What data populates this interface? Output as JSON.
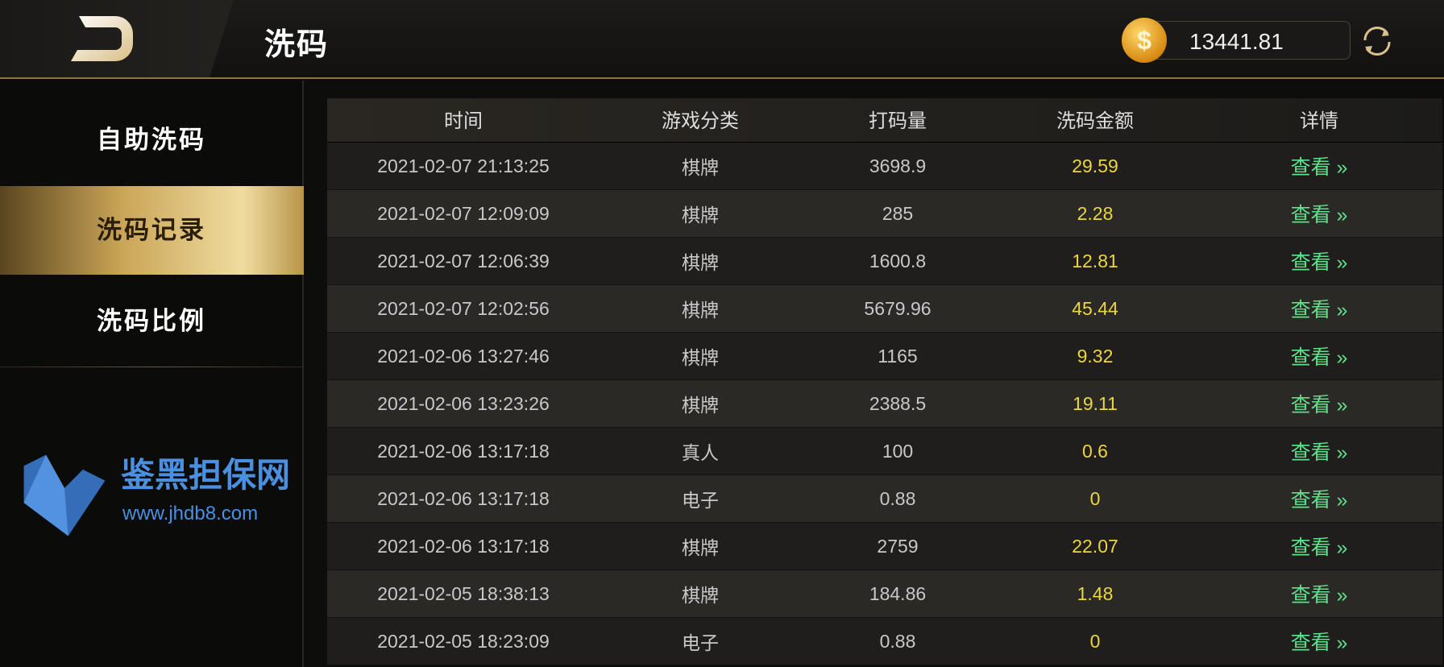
{
  "header": {
    "title": "洗码",
    "balance": "13441.81",
    "coin_symbol": "$",
    "back_icon": "back-logo-icon",
    "refresh_icon": "refresh-icon"
  },
  "sidebar": {
    "items": [
      {
        "label": "自助洗码",
        "active": false
      },
      {
        "label": "洗码记录",
        "active": true
      },
      {
        "label": "洗码比例",
        "active": false
      }
    ]
  },
  "table": {
    "columns": [
      "时间",
      "游戏分类",
      "打码量",
      "洗码金额",
      "详情"
    ],
    "rows": [
      {
        "time": "2021-02-07 21:13:25",
        "category": "棋牌",
        "bet": "3698.9",
        "amount": "29.59",
        "detail": "查看 »"
      },
      {
        "time": "2021-02-07 12:09:09",
        "category": "棋牌",
        "bet": "285",
        "amount": "2.28",
        "detail": "查看 »"
      },
      {
        "time": "2021-02-07 12:06:39",
        "category": "棋牌",
        "bet": "1600.8",
        "amount": "12.81",
        "detail": "查看 »"
      },
      {
        "time": "2021-02-07 12:02:56",
        "category": "棋牌",
        "bet": "5679.96",
        "amount": "45.44",
        "detail": "查看 »"
      },
      {
        "time": "2021-02-06 13:27:46",
        "category": "棋牌",
        "bet": "1165",
        "amount": "9.32",
        "detail": "查看 »"
      },
      {
        "time": "2021-02-06 13:23:26",
        "category": "棋牌",
        "bet": "2388.5",
        "amount": "19.11",
        "detail": "查看 »"
      },
      {
        "time": "2021-02-06 13:17:18",
        "category": "真人",
        "bet": "100",
        "amount": "0.6",
        "detail": "查看 »"
      },
      {
        "time": "2021-02-06 13:17:18",
        "category": "电子",
        "bet": "0.88",
        "amount": "0",
        "detail": "查看 »"
      },
      {
        "time": "2021-02-06 13:17:18",
        "category": "棋牌",
        "bet": "2759",
        "amount": "22.07",
        "detail": "查看 »"
      },
      {
        "time": "2021-02-05 18:38:13",
        "category": "棋牌",
        "bet": "184.86",
        "amount": "1.48",
        "detail": "查看 »"
      },
      {
        "time": "2021-02-05 18:23:09",
        "category": "电子",
        "bet": "0.88",
        "amount": "0",
        "detail": "查看 »"
      }
    ]
  },
  "watermark": {
    "text": "鉴黑担保网",
    "url": "www.jhdb8.com"
  },
  "colors": {
    "amount": "#ebd63d",
    "detail_link": "#5fe08a",
    "accent_gold": "#c9a557"
  }
}
